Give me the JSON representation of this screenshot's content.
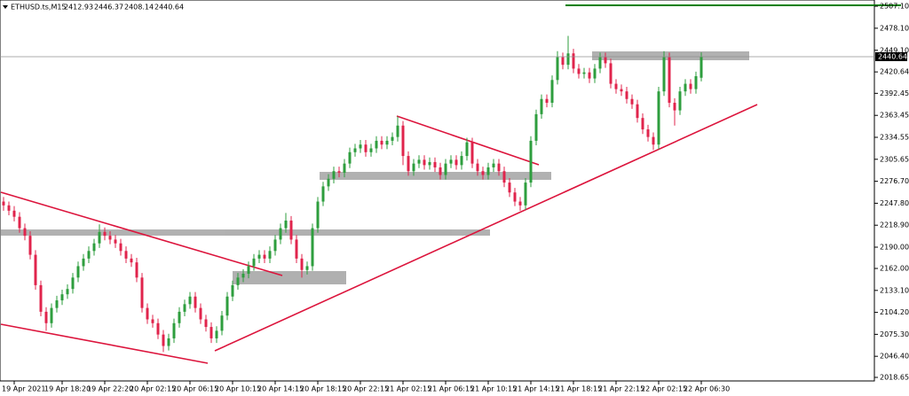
{
  "header": {
    "symbol": "ETHUSD.ts,M15",
    "ohlc": [
      2412.93,
      2446.37,
      2408.14,
      2440.64
    ]
  },
  "chart_data": {
    "type": "candlestick",
    "categories": [
      null,
      null,
      "19 Apr 2021",
      null,
      null,
      null,
      null,
      null,
      null,
      null,
      null,
      "19 Apr 18:20",
      null,
      null,
      null,
      null,
      null,
      null,
      null,
      "19 Apr 22:20",
      null,
      null,
      null,
      null,
      null,
      null,
      null,
      "20 Apr 02:15",
      null,
      null,
      null,
      null,
      null,
      null,
      null,
      "20 Apr 06:15",
      null,
      null,
      null,
      null,
      null,
      null,
      null,
      "20 Apr 10:15",
      null,
      null,
      null,
      null,
      null,
      null,
      null,
      "20 Apr 14:15",
      null,
      null,
      null,
      null,
      null,
      null,
      null,
      "20 Apr 18:15",
      null,
      null,
      null,
      null,
      null,
      null,
      null,
      "20 Apr 22:15",
      null,
      null,
      null,
      null,
      null,
      null,
      null,
      "21 Apr 02:15",
      null,
      null,
      null,
      null,
      null,
      null,
      null,
      "21 Apr 06:15",
      null,
      null,
      null,
      null,
      null,
      null,
      null,
      "21 Apr 10:15",
      null,
      null,
      null,
      null,
      null,
      null,
      null,
      "21 Apr 14:15",
      null,
      null,
      null,
      null,
      null,
      null,
      null,
      "21 Apr 18:15",
      null,
      null,
      null,
      null,
      null,
      null,
      null,
      "21 Apr 22:15",
      null,
      null,
      null,
      null,
      null,
      null,
      null,
      "22 Apr 02:15",
      null,
      null,
      null,
      null,
      null,
      null,
      null,
      "22 Apr 06:30"
    ],
    "open": [
      2250,
      2245,
      2238,
      2230,
      2215,
      2205,
      2180,
      2140,
      2105,
      2090,
      2110,
      2120,
      2128,
      2135,
      2150,
      2165,
      2175,
      2185,
      2195,
      2210,
      2205,
      2200,
      2195,
      2185,
      2175,
      2170,
      2150,
      2110,
      2095,
      2090,
      2075,
      2060,
      2070,
      2090,
      2105,
      2115,
      2125,
      2110,
      2095,
      2085,
      2070,
      2080,
      2100,
      2125,
      2140,
      2150,
      2155,
      2165,
      2175,
      2180,
      2175,
      2185,
      2200,
      2215,
      2225,
      2200,
      2175,
      2160,
      2165,
      2215,
      2250,
      2270,
      2280,
      2290,
      2288,
      2300,
      2315,
      2320,
      2325,
      2315,
      2320,
      2330,
      2325,
      2330,
      2335,
      2350,
      2310,
      2290,
      2300,
      2305,
      2298,
      2302,
      2295,
      2285,
      2300,
      2305,
      2298,
      2310,
      2328,
      2300,
      2290,
      2285,
      2295,
      2300,
      2290,
      2275,
      2262,
      2250,
      2245,
      2275,
      2330,
      2365,
      2385,
      2380,
      2410,
      2440,
      2430,
      2445,
      2425,
      2418,
      2420,
      2412,
      2425,
      2440,
      2432,
      2405,
      2398,
      2395,
      2385,
      2378,
      2360,
      2345,
      2335,
      2325,
      2395,
      2440,
      2380,
      2370,
      2395,
      2405,
      2398,
      2412.93
    ],
    "high": [
      2256,
      2250,
      2244,
      2236,
      2221,
      2211,
      2186,
      2146,
      2111,
      2116,
      2126,
      2134,
      2141,
      2156,
      2171,
      2181,
      2191,
      2201,
      2220,
      2216,
      2211,
      2206,
      2201,
      2191,
      2181,
      2176,
      2156,
      2116,
      2101,
      2096,
      2081,
      2076,
      2096,
      2111,
      2121,
      2131,
      2131,
      2116,
      2101,
      2091,
      2086,
      2106,
      2131,
      2146,
      2156,
      2161,
      2171,
      2181,
      2186,
      2186,
      2191,
      2206,
      2221,
      2235,
      2231,
      2206,
      2181,
      2171,
      2221,
      2256,
      2276,
      2286,
      2296,
      2296,
      2306,
      2321,
      2326,
      2331,
      2331,
      2326,
      2336,
      2336,
      2336,
      2341,
      2362,
      2356,
      2316,
      2306,
      2311,
      2311,
      2308,
      2308,
      2301,
      2306,
      2311,
      2311,
      2316,
      2334,
      2334,
      2306,
      2296,
      2301,
      2306,
      2306,
      2296,
      2281,
      2268,
      2256,
      2281,
      2336,
      2371,
      2391,
      2391,
      2416,
      2448,
      2446,
      2468,
      2451,
      2431,
      2426,
      2426,
      2431,
      2446,
      2446,
      2438,
      2411,
      2404,
      2401,
      2391,
      2384,
      2366,
      2351,
      2341,
      2401,
      2448,
      2446,
      2386,
      2401,
      2411,
      2411,
      2421,
      2446.37
    ],
    "low": [
      2238,
      2232,
      2224,
      2209,
      2199,
      2174,
      2134,
      2099,
      2080,
      2084,
      2104,
      2114,
      2122,
      2129,
      2144,
      2159,
      2169,
      2179,
      2189,
      2199,
      2194,
      2189,
      2179,
      2169,
      2164,
      2144,
      2104,
      2089,
      2084,
      2069,
      2052,
      2054,
      2064,
      2084,
      2099,
      2109,
      2104,
      2089,
      2079,
      2064,
      2064,
      2074,
      2094,
      2119,
      2134,
      2144,
      2149,
      2159,
      2169,
      2169,
      2169,
      2179,
      2194,
      2209,
      2194,
      2169,
      2150,
      2154,
      2159,
      2209,
      2244,
      2264,
      2274,
      2282,
      2282,
      2294,
      2309,
      2314,
      2309,
      2309,
      2314,
      2319,
      2319,
      2324,
      2329,
      2298,
      2284,
      2284,
      2294,
      2292,
      2292,
      2289,
      2279,
      2279,
      2294,
      2292,
      2292,
      2304,
      2294,
      2284,
      2279,
      2279,
      2289,
      2284,
      2269,
      2256,
      2244,
      2238,
      2239,
      2269,
      2324,
      2359,
      2374,
      2374,
      2404,
      2424,
      2424,
      2419,
      2412,
      2412,
      2406,
      2406,
      2419,
      2426,
      2399,
      2392,
      2389,
      2379,
      2372,
      2354,
      2339,
      2329,
      2318,
      2319,
      2389,
      2374,
      2350,
      2364,
      2389,
      2392,
      2392,
      2408.14
    ],
    "close": [
      2245,
      2238,
      2230,
      2215,
      2205,
      2180,
      2140,
      2105,
      2090,
      2110,
      2120,
      2128,
      2135,
      2150,
      2165,
      2175,
      2185,
      2195,
      2210,
      2205,
      2200,
      2195,
      2185,
      2175,
      2170,
      2150,
      2110,
      2095,
      2090,
      2075,
      2060,
      2070,
      2090,
      2105,
      2115,
      2125,
      2110,
      2095,
      2085,
      2070,
      2080,
      2100,
      2125,
      2140,
      2150,
      2155,
      2165,
      2175,
      2180,
      2175,
      2185,
      2200,
      2215,
      2225,
      2200,
      2175,
      2160,
      2165,
      2215,
      2250,
      2270,
      2280,
      2290,
      2288,
      2300,
      2315,
      2320,
      2325,
      2315,
      2320,
      2330,
      2325,
      2330,
      2335,
      2350,
      2310,
      2290,
      2300,
      2305,
      2298,
      2302,
      2295,
      2285,
      2300,
      2305,
      2298,
      2310,
      2328,
      2300,
      2290,
      2285,
      2295,
      2300,
      2290,
      2275,
      2262,
      2250,
      2245,
      2275,
      2330,
      2365,
      2385,
      2380,
      2410,
      2440,
      2430,
      2445,
      2425,
      2418,
      2420,
      2412,
      2425,
      2440,
      2432,
      2405,
      2398,
      2395,
      2385,
      2378,
      2360,
      2345,
      2335,
      2325,
      2395,
      2440,
      2380,
      2370,
      2395,
      2405,
      2398,
      2415,
      2440.64
    ],
    "up_color": "#2e9e3e",
    "down_color": "#e0244c",
    "current_price": 2440.64,
    "ylim": [
      2013.97,
      2515.26
    ],
    "yticks": [
      {
        "value": 2507.1,
        "label": "2507.10"
      },
      {
        "value": 2478.1,
        "label": "2478.10"
      },
      {
        "value": 2449.1,
        "label": "2449.10"
      },
      2420.64,
      2392.45,
      2363.45,
      2334.55,
      2305.65,
      {
        "value": 2276.7,
        "label": "2276.70"
      },
      {
        "value": 2247.8,
        "label": "2247.80"
      },
      {
        "value": 2218.9,
        "label": "2218.90"
      },
      {
        "value": 2190,
        "label": "2190.00"
      },
      {
        "value": 2162,
        "label": "2162.00"
      },
      {
        "value": 2133.1,
        "label": "2133.10"
      },
      {
        "value": 2104.2,
        "label": "2104.20"
      },
      {
        "value": 2075.3,
        "label": "2075.30"
      },
      {
        "value": 2046.4,
        "label": "2046.40"
      },
      2018.65
    ]
  }
}
